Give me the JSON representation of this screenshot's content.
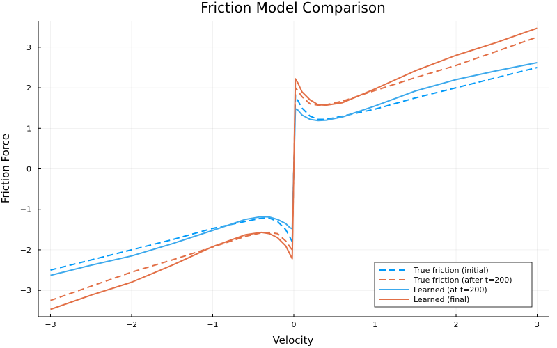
{
  "chart_data": {
    "type": "line",
    "title": "Friction Model Comparison",
    "xlabel": "Velocity",
    "ylabel": "Friction Force",
    "xlim": [
      -3.15,
      3.15
    ],
    "ylim": [
      -3.65,
      3.65
    ],
    "xticks": [
      -3,
      -2,
      -1,
      0,
      1,
      2,
      3
    ],
    "yticks": [
      -3,
      -2,
      -1,
      0,
      1,
      2,
      3
    ],
    "xtick_labels": [
      "−3",
      "−2",
      "−1",
      "0",
      "1",
      "2",
      "3"
    ],
    "ytick_labels": [
      "−3",
      "−2",
      "−1",
      "0",
      "1",
      "2",
      "3"
    ],
    "grid": true,
    "legend_position": "bottom-right",
    "series": [
      {
        "name": "True friction (initial)",
        "color": "#009af9",
        "dashed": true,
        "x": [
          -3,
          -2.5,
          -2,
          -1.5,
          -1,
          -0.6,
          -0.4,
          -0.3,
          -0.2,
          -0.1,
          -0.04,
          -0.02,
          0.0,
          0.02,
          0.04,
          0.1,
          0.2,
          0.3,
          0.4,
          0.6,
          1,
          1.5,
          2,
          2.5,
          3
        ],
        "y": [
          -2.5,
          -2.25,
          -2.0,
          -1.75,
          -1.47,
          -1.3,
          -1.22,
          -1.22,
          -1.3,
          -1.5,
          -1.72,
          -1.8,
          0.0,
          1.8,
          1.72,
          1.5,
          1.3,
          1.22,
          1.22,
          1.3,
          1.47,
          1.75,
          2.0,
          2.25,
          2.5
        ]
      },
      {
        "name": "True friction (after t=200)",
        "color": "#e26f46",
        "dashed": true,
        "x": [
          -3,
          -2.5,
          -2,
          -1.5,
          -1,
          -0.6,
          -0.4,
          -0.3,
          -0.2,
          -0.1,
          -0.04,
          -0.02,
          0.0,
          0.02,
          0.04,
          0.1,
          0.2,
          0.3,
          0.4,
          0.6,
          1,
          1.5,
          2,
          2.5,
          3
        ],
        "y": [
          -3.25,
          -2.9,
          -2.55,
          -2.25,
          -1.93,
          -1.67,
          -1.58,
          -1.57,
          -1.6,
          -1.78,
          -1.95,
          -2.0,
          0.0,
          2.0,
          1.95,
          1.78,
          1.6,
          1.57,
          1.58,
          1.67,
          1.93,
          2.25,
          2.55,
          2.9,
          3.25
        ]
      },
      {
        "name": "Learned (at t=200)",
        "color": "#3da9ec",
        "dashed": false,
        "x": [
          -3,
          -2.5,
          -2,
          -1.5,
          -1,
          -0.6,
          -0.4,
          -0.3,
          -0.2,
          -0.1,
          -0.05,
          -0.02,
          0.0,
          0.02,
          0.05,
          0.1,
          0.2,
          0.3,
          0.4,
          0.6,
          1,
          1.5,
          2,
          2.5,
          3
        ],
        "y": [
          -2.63,
          -2.38,
          -2.15,
          -1.85,
          -1.52,
          -1.25,
          -1.18,
          -1.19,
          -1.25,
          -1.35,
          -1.45,
          -1.48,
          0.0,
          1.48,
          1.45,
          1.33,
          1.22,
          1.19,
          1.2,
          1.28,
          1.55,
          1.92,
          2.2,
          2.42,
          2.62
        ]
      },
      {
        "name": "Learned (final)",
        "color": "#e26f46",
        "dashed": false,
        "x": [
          -3,
          -2.5,
          -2,
          -1.5,
          -1,
          -0.6,
          -0.4,
          -0.3,
          -0.2,
          -0.1,
          -0.05,
          -0.02,
          0.0,
          0.02,
          0.05,
          0.1,
          0.2,
          0.3,
          0.4,
          0.6,
          1,
          1.5,
          2,
          2.5,
          3
        ],
        "y": [
          -3.47,
          -3.12,
          -2.8,
          -2.38,
          -1.92,
          -1.63,
          -1.57,
          -1.6,
          -1.7,
          -1.9,
          -2.1,
          -2.22,
          0.0,
          2.22,
          2.12,
          1.9,
          1.7,
          1.58,
          1.57,
          1.63,
          1.97,
          2.42,
          2.8,
          3.12,
          3.47
        ]
      }
    ]
  }
}
